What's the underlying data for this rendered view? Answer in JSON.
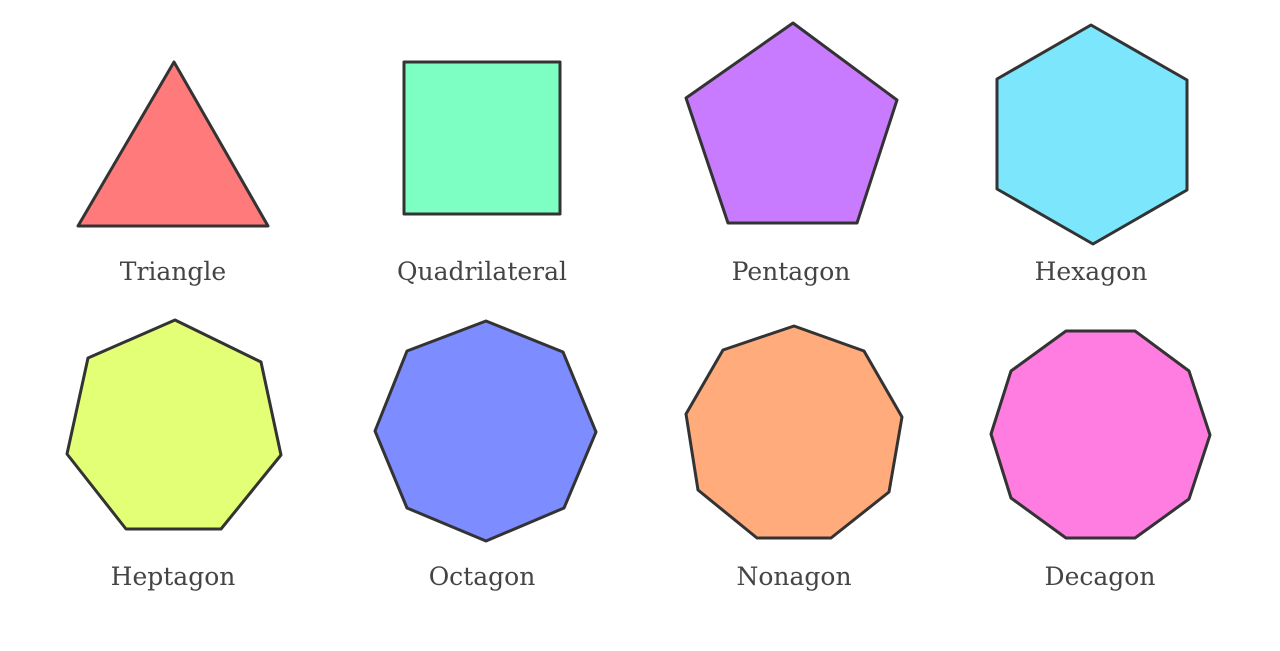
{
  "polygons": [
    {
      "key": "triangle",
      "label": "Triangle",
      "sides": 3,
      "fill": "#FF7B7B"
    },
    {
      "key": "quadrilateral",
      "label": "Quadrilateral",
      "sides": 4,
      "fill": "#7DFFC4"
    },
    {
      "key": "pentagon",
      "label": "Pentagon",
      "sides": 5,
      "fill": "#C97BFF"
    },
    {
      "key": "hexagon",
      "label": "Hexagon",
      "sides": 6,
      "fill": "#7CE6FC"
    },
    {
      "key": "heptagon",
      "label": "Heptagon",
      "sides": 7,
      "fill": "#E2FF75"
    },
    {
      "key": "octagon",
      "label": "Octagon",
      "sides": 8,
      "fill": "#7D8CFF"
    },
    {
      "key": "nonagon",
      "label": "Nonagon",
      "sides": 9,
      "fill": "#FFAB7C"
    },
    {
      "key": "decagon",
      "label": "Decagon",
      "sides": 10,
      "fill": "#FF7DE0"
    }
  ],
  "colors": {
    "outline": "#333333",
    "label_text": "#444444",
    "background": "#FFFFFF"
  }
}
